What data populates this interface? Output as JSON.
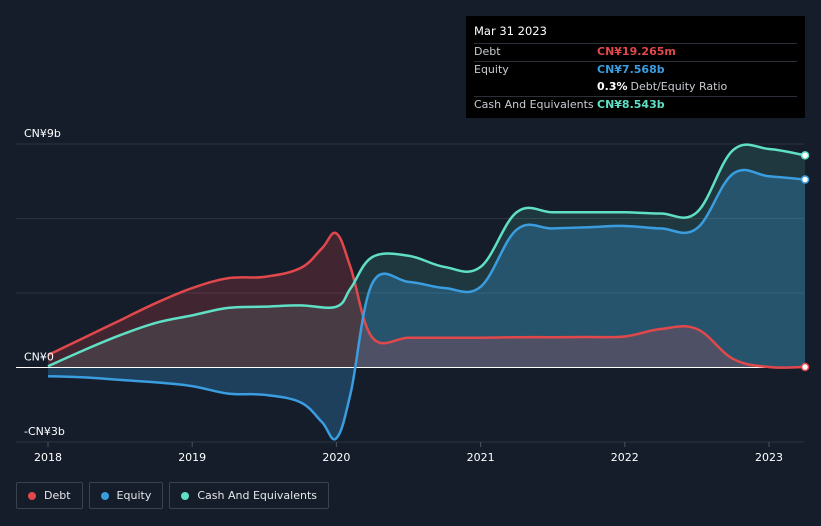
{
  "tooltip": {
    "date": "Mar 31 2023",
    "rows": [
      {
        "label": "Debt",
        "value": "CN¥19.265m",
        "color": "#e0484c"
      },
      {
        "label": "Equity",
        "value": "CN¥7.568b",
        "color": "#3a9de0"
      },
      {
        "label": "",
        "value": "0.3%",
        "extra": "Debt/Equity Ratio",
        "color": "#ffffff"
      },
      {
        "label": "Cash And Equivalents",
        "value": "CN¥8.543b",
        "color": "#5fe0c5"
      }
    ]
  },
  "legend": [
    {
      "label": "Debt",
      "color": "#e0484c"
    },
    {
      "label": "Equity",
      "color": "#3a9de0"
    },
    {
      "label": "Cash And Equivalents",
      "color": "#5fe0c5"
    }
  ],
  "chart_data": {
    "type": "area",
    "y_unit": "CN¥ billions",
    "ylim": [
      -3,
      9
    ],
    "y_ticks": [
      {
        "value": 9,
        "label": "CN¥9b"
      },
      {
        "value": 0,
        "label": "CN¥0"
      },
      {
        "value": -3,
        "label": "-CN¥3b"
      }
    ],
    "x_ticks": [
      {
        "value": 2018,
        "label": "2018"
      },
      {
        "value": 2019,
        "label": "2019"
      },
      {
        "value": 2020,
        "label": "2020"
      },
      {
        "value": 2021,
        "label": "2021"
      },
      {
        "value": 2022,
        "label": "2022"
      },
      {
        "value": 2023,
        "label": "2023"
      }
    ],
    "xlim": [
      2018,
      2023.25
    ],
    "series": [
      {
        "name": "Debt",
        "color": "#e0484c",
        "points": [
          [
            2018,
            0.5
          ],
          [
            2018.25,
            1.2
          ],
          [
            2018.5,
            1.9
          ],
          [
            2018.75,
            2.6
          ],
          [
            2019,
            3.2
          ],
          [
            2019.25,
            3.6
          ],
          [
            2019.5,
            3.65
          ],
          [
            2019.75,
            4.0
          ],
          [
            2019.9,
            4.8
          ],
          [
            2020,
            5.4
          ],
          [
            2020.1,
            4.0
          ],
          [
            2020.25,
            1.2
          ],
          [
            2020.5,
            1.2
          ],
          [
            2020.75,
            1.2
          ],
          [
            2021,
            1.2
          ],
          [
            2021.25,
            1.22
          ],
          [
            2021.5,
            1.22
          ],
          [
            2021.75,
            1.23
          ],
          [
            2022,
            1.25
          ],
          [
            2022.25,
            1.55
          ],
          [
            2022.5,
            1.55
          ],
          [
            2022.75,
            0.35
          ],
          [
            2023,
            0.02
          ],
          [
            2023.25,
            0.019
          ]
        ]
      },
      {
        "name": "Equity",
        "color": "#3a9de0",
        "points": [
          [
            2018,
            -0.35
          ],
          [
            2018.25,
            -0.4
          ],
          [
            2018.5,
            -0.5
          ],
          [
            2018.75,
            -0.6
          ],
          [
            2019,
            -0.75
          ],
          [
            2019.25,
            -1.05
          ],
          [
            2019.5,
            -1.1
          ],
          [
            2019.75,
            -1.4
          ],
          [
            2019.9,
            -2.2
          ],
          [
            2020,
            -2.85
          ],
          [
            2020.1,
            -1.0
          ],
          [
            2020.25,
            3.4
          ],
          [
            2020.5,
            3.45
          ],
          [
            2020.75,
            3.2
          ],
          [
            2021,
            3.25
          ],
          [
            2021.25,
            5.55
          ],
          [
            2021.5,
            5.6
          ],
          [
            2021.75,
            5.65
          ],
          [
            2022,
            5.7
          ],
          [
            2022.25,
            5.6
          ],
          [
            2022.5,
            5.6
          ],
          [
            2022.75,
            7.8
          ],
          [
            2023,
            7.7
          ],
          [
            2023.25,
            7.568
          ]
        ]
      },
      {
        "name": "Cash And Equivalents",
        "color": "#5fe0c5",
        "points": [
          [
            2018,
            0.05
          ],
          [
            2018.25,
            0.7
          ],
          [
            2018.5,
            1.3
          ],
          [
            2018.75,
            1.8
          ],
          [
            2019,
            2.1
          ],
          [
            2019.25,
            2.4
          ],
          [
            2019.5,
            2.45
          ],
          [
            2019.75,
            2.5
          ],
          [
            2020,
            2.45
          ],
          [
            2020.1,
            3.2
          ],
          [
            2020.25,
            4.45
          ],
          [
            2020.5,
            4.5
          ],
          [
            2020.75,
            4.05
          ],
          [
            2021,
            4.05
          ],
          [
            2021.25,
            6.25
          ],
          [
            2021.5,
            6.25
          ],
          [
            2021.75,
            6.25
          ],
          [
            2022,
            6.25
          ],
          [
            2022.25,
            6.2
          ],
          [
            2022.5,
            6.25
          ],
          [
            2022.75,
            8.75
          ],
          [
            2023,
            8.8
          ],
          [
            2023.25,
            8.543
          ]
        ]
      }
    ]
  }
}
